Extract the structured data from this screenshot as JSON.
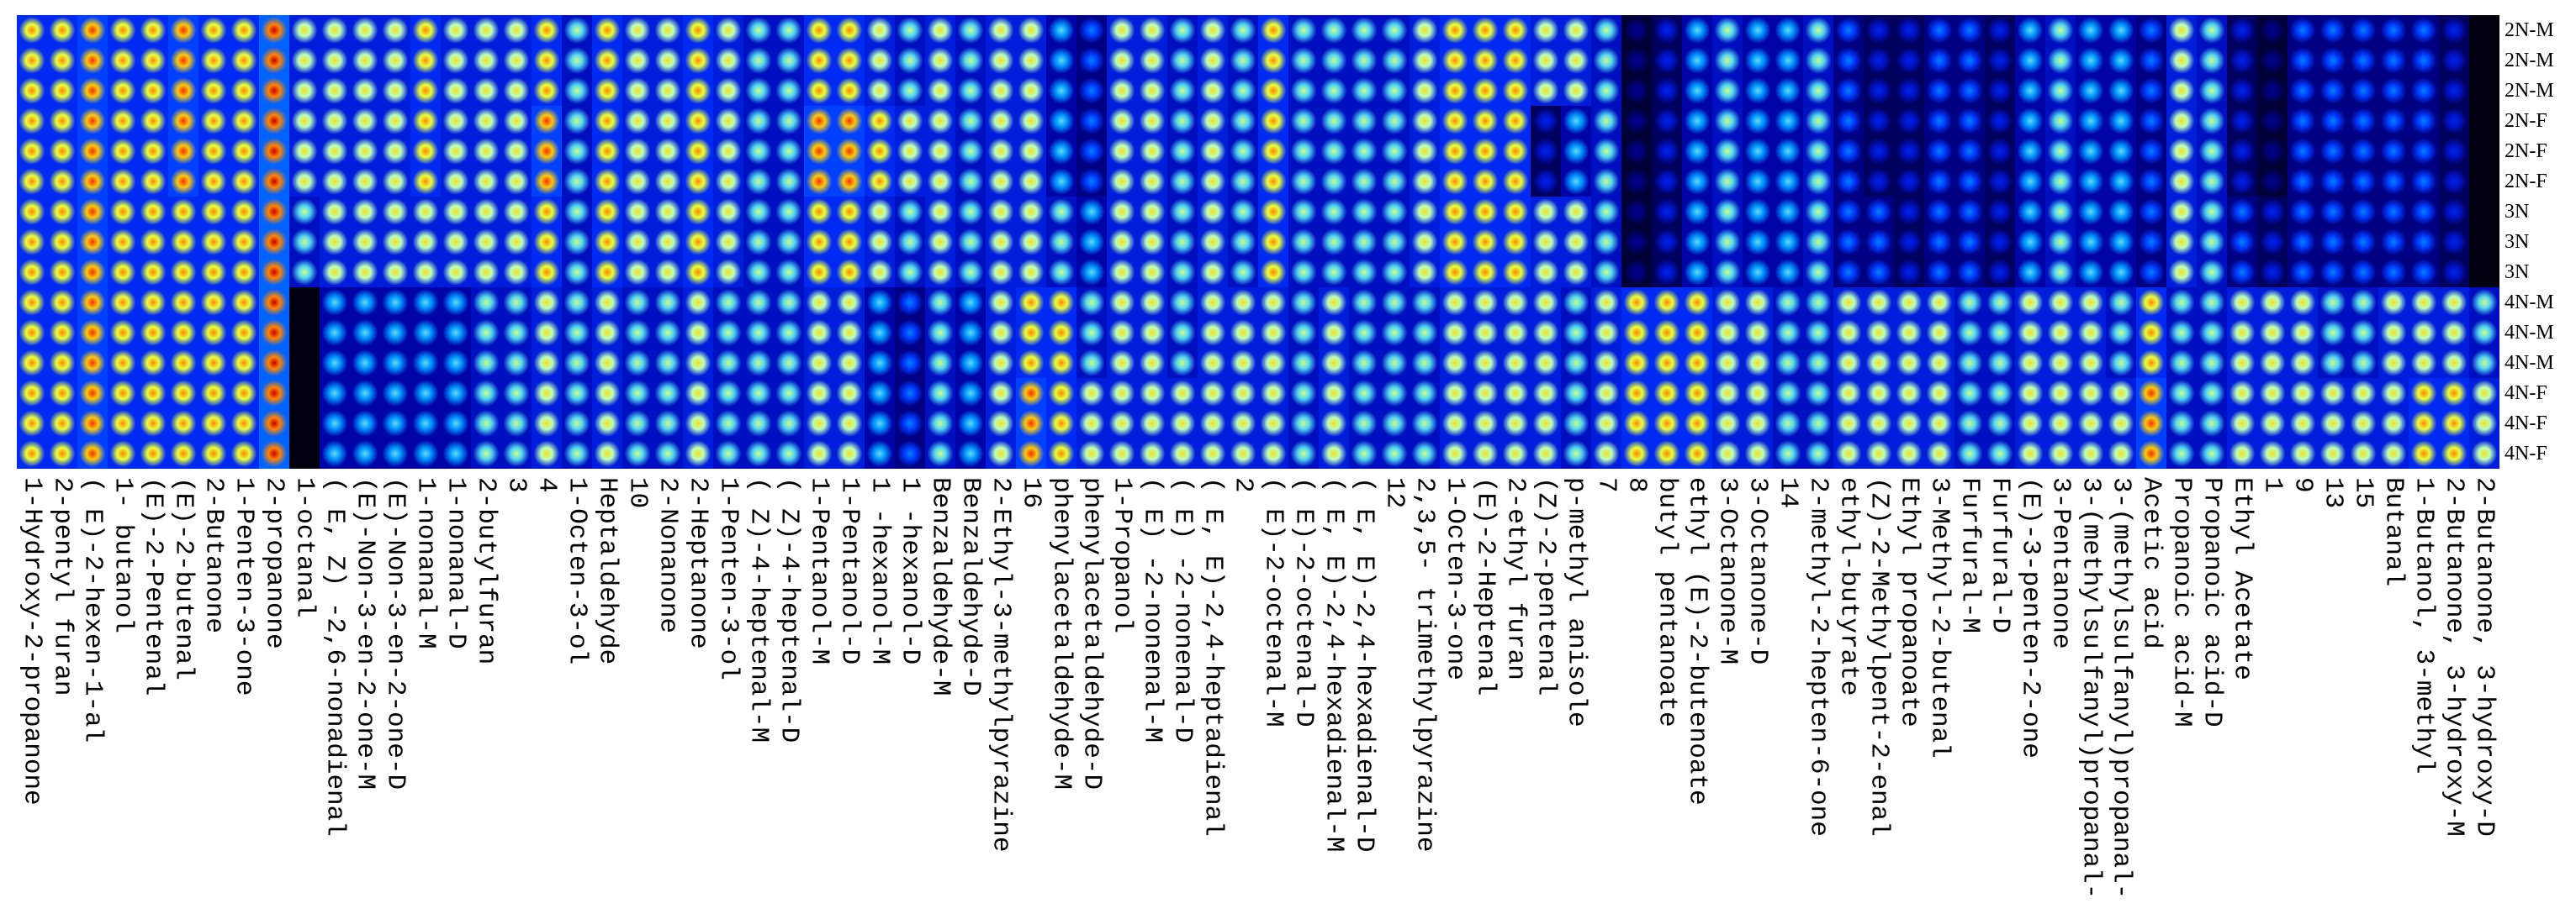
{
  "chart_data": {
    "type": "heatmap",
    "columns": [
      "1-Hydroxy-2-propanone",
      "2-pentyl furan",
      "( E)-2-hexen-1-al",
      "1- butanol",
      "(E)-2-Pentenal",
      "(E)-2-butenal",
      "2-Butanone",
      "1-Penten-3-one",
      "2-propanone",
      "1-octanal",
      "( E, Z) -2,6-nonadienal",
      "(E)-Non-3-en-2-one-M",
      "(E)-Non-3-en-2-one-D",
      "1-nonanal-M",
      "1-nonanal-D",
      "2-butylfuran",
      "3",
      "4",
      "1-Octen-3-ol",
      "Heptaldehyde",
      "10",
      "2-Nonanone",
      "2-Heptanone",
      "1-Penten-3-ol",
      "( Z)-4-heptenal-M",
      "( Z)-4-heptenal-D",
      "1-Pentanol-M",
      "1-Pentanol-D",
      "1 -hexanol-M",
      "1 -hexanol-D",
      "Benzaldehyde-M",
      "Benzaldehyde-D",
      "2-Ethyl-3-methylpyrazine",
      "16",
      "phenylacetaldehyde-M",
      "phenylacetaldehyde-D",
      "1-Propanol",
      "( E) -2-nonenal-M",
      "( E) -2-nonenal-D",
      "( E, E)-2,4-heptadienal",
      "2",
      "( E)-2-octenal-M",
      "( E)-2-octenal-D",
      "( E, E)-2,4-hexadienal-M",
      "( E, E)-2,4-hexadienal-D",
      "12",
      "2,3,5- trimethylpyrazine",
      "1-Octen-3-one",
      "(E)-2-Heptenal",
      "2-ethyl furan",
      "(Z)-2-pentenal",
      "p-methyl anisole",
      "7",
      "8",
      "butyl pentanoate",
      "ethyl (E)-2-butenoate",
      "3-Octanone-M",
      "3-Octanone-D",
      "14",
      "2-methyl-2-hepten-6-one",
      "ethyl-butyrate",
      "(Z)-2-Methylpent-2-enal",
      "Ethyl propanoate",
      "3-Methyl-2-butenal",
      "Furfural-M",
      "Furfural-D",
      "(E)-3-penten-2-one",
      "3-Pentanone",
      "3-(methylsulfanyl)propanal-",
      "3-(methylsulfanyl)propanal-",
      "Acetic acid",
      "Propanoic acid-M",
      "Propanoic acid-D",
      "Ethyl Acetate",
      "1",
      "9",
      "13",
      "15",
      "Butanal",
      "1-Butanol, 3-methyl",
      "2-Butanone, 3-hydroxy-M",
      "2-Butanone, 3-hydroxy-D"
    ],
    "rows": [
      "2N-M",
      "2N-M",
      "2N-M",
      "2N-F",
      "2N-F",
      "2N-F",
      "3N",
      "3N",
      "3N",
      "4N-M",
      "4N-M",
      "4N-M",
      "4N-F",
      "4N-F",
      "4N-F"
    ],
    "values": [
      [
        7,
        7,
        8,
        7,
        7,
        8,
        7,
        7,
        9,
        6,
        6,
        6,
        6,
        7,
        6,
        6,
        6,
        7,
        5,
        7,
        6,
        6,
        7,
        6,
        5,
        5,
        7,
        7,
        6,
        5,
        6,
        5,
        6,
        6,
        4,
        3,
        6,
        6,
        5,
        6,
        5,
        7,
        5,
        5,
        5,
        5,
        6,
        7,
        7,
        7,
        6,
        6,
        5,
        1,
        2,
        4,
        5,
        4,
        4,
        5,
        3,
        2,
        2,
        3,
        3,
        2,
        4,
        5,
        4,
        4,
        3,
        6,
        5,
        2,
        1,
        3,
        3,
        3,
        3,
        3,
        2,
        0
      ],
      [
        7,
        7,
        8,
        7,
        7,
        8,
        7,
        7,
        9,
        6,
        6,
        6,
        6,
        7,
        6,
        6,
        6,
        7,
        5,
        7,
        6,
        6,
        7,
        6,
        5,
        5,
        7,
        7,
        6,
        5,
        6,
        5,
        6,
        6,
        4,
        3,
        6,
        6,
        5,
        6,
        5,
        7,
        5,
        5,
        5,
        5,
        6,
        7,
        7,
        7,
        6,
        6,
        5,
        1,
        2,
        4,
        5,
        4,
        4,
        5,
        3,
        2,
        2,
        3,
        3,
        2,
        4,
        5,
        4,
        4,
        3,
        6,
        5,
        2,
        1,
        3,
        3,
        3,
        3,
        3,
        2,
        0
      ],
      [
        7,
        7,
        8,
        7,
        7,
        8,
        7,
        7,
        9,
        6,
        6,
        6,
        6,
        7,
        6,
        6,
        6,
        7,
        5,
        7,
        6,
        6,
        7,
        6,
        5,
        5,
        7,
        7,
        6,
        5,
        6,
        5,
        6,
        6,
        4,
        3,
        6,
        6,
        5,
        6,
        5,
        7,
        5,
        5,
        5,
        5,
        6,
        7,
        7,
        7,
        6,
        6,
        5,
        1,
        2,
        4,
        5,
        4,
        4,
        5,
        3,
        2,
        2,
        3,
        3,
        2,
        4,
        5,
        4,
        4,
        3,
        6,
        5,
        2,
        1,
        3,
        3,
        3,
        3,
        3,
        2,
        0
      ],
      [
        7,
        7,
        8,
        7,
        7,
        8,
        7,
        7,
        9,
        6,
        6,
        6,
        6,
        7,
        6,
        6,
        6,
        8,
        5,
        7,
        6,
        6,
        7,
        6,
        5,
        5,
        8,
        8,
        7,
        6,
        6,
        5,
        6,
        6,
        4,
        3,
        6,
        6,
        5,
        6,
        5,
        7,
        5,
        5,
        5,
        5,
        6,
        7,
        7,
        7,
        2,
        4,
        5,
        1,
        2,
        4,
        5,
        4,
        4,
        5,
        3,
        2,
        2,
        3,
        3,
        2,
        4,
        5,
        4,
        4,
        3,
        6,
        5,
        2,
        1,
        3,
        3,
        3,
        3,
        3,
        2,
        0
      ],
      [
        7,
        7,
        8,
        7,
        7,
        8,
        7,
        7,
        9,
        6,
        6,
        6,
        6,
        7,
        6,
        6,
        6,
        8,
        5,
        7,
        6,
        6,
        7,
        6,
        5,
        5,
        8,
        8,
        7,
        6,
        6,
        5,
        6,
        6,
        4,
        3,
        6,
        6,
        5,
        6,
        5,
        7,
        5,
        5,
        5,
        5,
        6,
        7,
        7,
        7,
        2,
        4,
        5,
        1,
        2,
        4,
        5,
        4,
        4,
        5,
        3,
        2,
        2,
        3,
        3,
        2,
        4,
        5,
        4,
        4,
        3,
        6,
        5,
        2,
        1,
        3,
        3,
        3,
        3,
        3,
        2,
        0
      ],
      [
        7,
        7,
        8,
        7,
        7,
        8,
        7,
        7,
        9,
        6,
        6,
        6,
        6,
        7,
        6,
        6,
        6,
        8,
        5,
        7,
        6,
        6,
        7,
        6,
        5,
        5,
        8,
        8,
        7,
        6,
        6,
        5,
        6,
        6,
        4,
        3,
        6,
        6,
        5,
        6,
        5,
        7,
        5,
        5,
        5,
        5,
        6,
        7,
        7,
        7,
        2,
        4,
        5,
        1,
        2,
        4,
        5,
        4,
        4,
        5,
        3,
        2,
        2,
        3,
        3,
        2,
        4,
        5,
        4,
        4,
        3,
        6,
        5,
        2,
        1,
        3,
        3,
        3,
        3,
        3,
        2,
        0
      ],
      [
        7,
        7,
        8,
        7,
        7,
        7,
        7,
        7,
        9,
        5,
        6,
        6,
        6,
        6,
        6,
        6,
        6,
        7,
        5,
        7,
        6,
        6,
        7,
        6,
        5,
        5,
        7,
        7,
        6,
        5,
        6,
        5,
        6,
        6,
        5,
        4,
        6,
        6,
        5,
        6,
        5,
        7,
        5,
        5,
        5,
        5,
        6,
        7,
        7,
        7,
        6,
        6,
        5,
        1,
        2,
        4,
        5,
        4,
        4,
        5,
        3,
        3,
        2,
        3,
        3,
        2,
        4,
        5,
        4,
        4,
        3,
        6,
        5,
        3,
        2,
        3,
        3,
        3,
        3,
        3,
        2,
        0
      ],
      [
        7,
        7,
        8,
        7,
        7,
        7,
        7,
        7,
        9,
        5,
        6,
        6,
        6,
        6,
        6,
        6,
        6,
        7,
        5,
        7,
        6,
        6,
        7,
        6,
        5,
        5,
        7,
        7,
        6,
        5,
        6,
        5,
        6,
        6,
        5,
        4,
        6,
        6,
        5,
        6,
        5,
        7,
        5,
        5,
        5,
        5,
        6,
        7,
        7,
        7,
        6,
        6,
        5,
        1,
        2,
        4,
        5,
        4,
        4,
        5,
        3,
        3,
        2,
        3,
        3,
        2,
        4,
        5,
        4,
        4,
        3,
        6,
        5,
        3,
        2,
        3,
        3,
        3,
        3,
        3,
        2,
        0
      ],
      [
        7,
        7,
        8,
        7,
        7,
        7,
        7,
        7,
        9,
        5,
        6,
        6,
        6,
        6,
        6,
        6,
        6,
        7,
        5,
        7,
        6,
        6,
        7,
        6,
        5,
        5,
        7,
        7,
        6,
        5,
        6,
        5,
        6,
        6,
        5,
        4,
        6,
        6,
        5,
        6,
        5,
        7,
        5,
        5,
        5,
        5,
        6,
        7,
        7,
        7,
        6,
        6,
        5,
        1,
        2,
        4,
        5,
        4,
        4,
        5,
        3,
        3,
        2,
        3,
        3,
        2,
        4,
        5,
        4,
        4,
        3,
        6,
        5,
        3,
        2,
        3,
        3,
        3,
        3,
        3,
        2,
        0
      ],
      [
        7,
        7,
        8,
        7,
        7,
        7,
        7,
        7,
        9,
        0,
        4,
        4,
        4,
        4,
        4,
        5,
        5,
        6,
        5,
        6,
        5,
        5,
        6,
        5,
        5,
        5,
        6,
        6,
        4,
        3,
        5,
        4,
        6,
        7,
        7,
        5,
        6,
        6,
        5,
        6,
        6,
        6,
        5,
        6,
        5,
        5,
        5,
        6,
        6,
        6,
        6,
        5,
        6,
        7,
        7,
        7,
        6,
        6,
        5,
        5,
        6,
        6,
        6,
        6,
        5,
        5,
        6,
        6,
        6,
        5,
        7,
        5,
        5,
        6,
        6,
        6,
        5,
        5,
        6,
        6,
        6,
        5
      ],
      [
        7,
        7,
        8,
        7,
        7,
        7,
        7,
        7,
        9,
        0,
        4,
        4,
        4,
        4,
        4,
        5,
        5,
        6,
        5,
        6,
        5,
        5,
        6,
        5,
        5,
        5,
        6,
        6,
        4,
        3,
        5,
        4,
        6,
        7,
        7,
        5,
        6,
        6,
        5,
        6,
        6,
        6,
        5,
        6,
        5,
        5,
        5,
        6,
        6,
        6,
        6,
        5,
        6,
        7,
        7,
        7,
        6,
        6,
        5,
        5,
        6,
        6,
        6,
        6,
        5,
        5,
        6,
        6,
        6,
        5,
        7,
        5,
        5,
        6,
        6,
        6,
        5,
        5,
        6,
        6,
        6,
        5
      ],
      [
        7,
        7,
        8,
        7,
        7,
        7,
        7,
        7,
        9,
        0,
        4,
        4,
        4,
        4,
        4,
        5,
        5,
        6,
        5,
        6,
        5,
        5,
        6,
        5,
        5,
        5,
        6,
        6,
        4,
        3,
        5,
        4,
        6,
        7,
        7,
        5,
        6,
        6,
        5,
        6,
        6,
        6,
        5,
        6,
        5,
        5,
        5,
        6,
        6,
        6,
        6,
        5,
        6,
        7,
        7,
        7,
        6,
        6,
        5,
        5,
        6,
        6,
        6,
        6,
        5,
        5,
        6,
        6,
        6,
        5,
        7,
        5,
        5,
        6,
        6,
        6,
        5,
        5,
        6,
        6,
        6,
        5
      ],
      [
        7,
        7,
        8,
        7,
        7,
        7,
        7,
        7,
        9,
        0,
        4,
        4,
        4,
        4,
        4,
        5,
        5,
        6,
        5,
        6,
        5,
        5,
        6,
        5,
        5,
        5,
        6,
        6,
        4,
        3,
        5,
        4,
        6,
        8,
        7,
        6,
        6,
        6,
        6,
        6,
        6,
        6,
        5,
        6,
        5,
        5,
        5,
        6,
        6,
        6,
        6,
        5,
        6,
        7,
        7,
        7,
        6,
        6,
        5,
        5,
        6,
        6,
        6,
        6,
        5,
        5,
        6,
        6,
        6,
        6,
        8,
        5,
        5,
        6,
        6,
        6,
        6,
        6,
        6,
        7,
        7,
        6
      ],
      [
        7,
        7,
        8,
        7,
        7,
        7,
        7,
        7,
        9,
        0,
        4,
        4,
        4,
        4,
        4,
        5,
        5,
        6,
        5,
        6,
        5,
        5,
        6,
        5,
        5,
        5,
        6,
        6,
        4,
        3,
        5,
        4,
        6,
        8,
        7,
        6,
        6,
        6,
        6,
        6,
        6,
        6,
        5,
        6,
        5,
        5,
        5,
        6,
        6,
        6,
        6,
        5,
        6,
        7,
        7,
        7,
        6,
        6,
        5,
        5,
        6,
        6,
        6,
        6,
        5,
        5,
        6,
        6,
        6,
        6,
        8,
        5,
        5,
        6,
        6,
        6,
        6,
        6,
        6,
        7,
        7,
        6
      ],
      [
        7,
        7,
        8,
        7,
        7,
        7,
        7,
        7,
        9,
        0,
        4,
        4,
        4,
        4,
        4,
        5,
        5,
        6,
        5,
        6,
        5,
        5,
        6,
        5,
        5,
        5,
        6,
        6,
        4,
        3,
        5,
        4,
        6,
        8,
        7,
        6,
        6,
        6,
        6,
        6,
        6,
        6,
        5,
        6,
        5,
        5,
        5,
        6,
        6,
        6,
        6,
        5,
        6,
        7,
        7,
        7,
        6,
        6,
        5,
        5,
        6,
        6,
        6,
        6,
        5,
        5,
        6,
        6,
        6,
        6,
        8,
        5,
        5,
        6,
        6,
        6,
        6,
        6,
        6,
        7,
        7,
        6
      ]
    ],
    "colormap": [
      "#000010",
      "#0000a0",
      "#0030ff",
      "#00b0ff",
      "#b0ffe0",
      "#f0ff20",
      "#ffa000",
      "#ff3000",
      "#c00000"
    ]
  }
}
